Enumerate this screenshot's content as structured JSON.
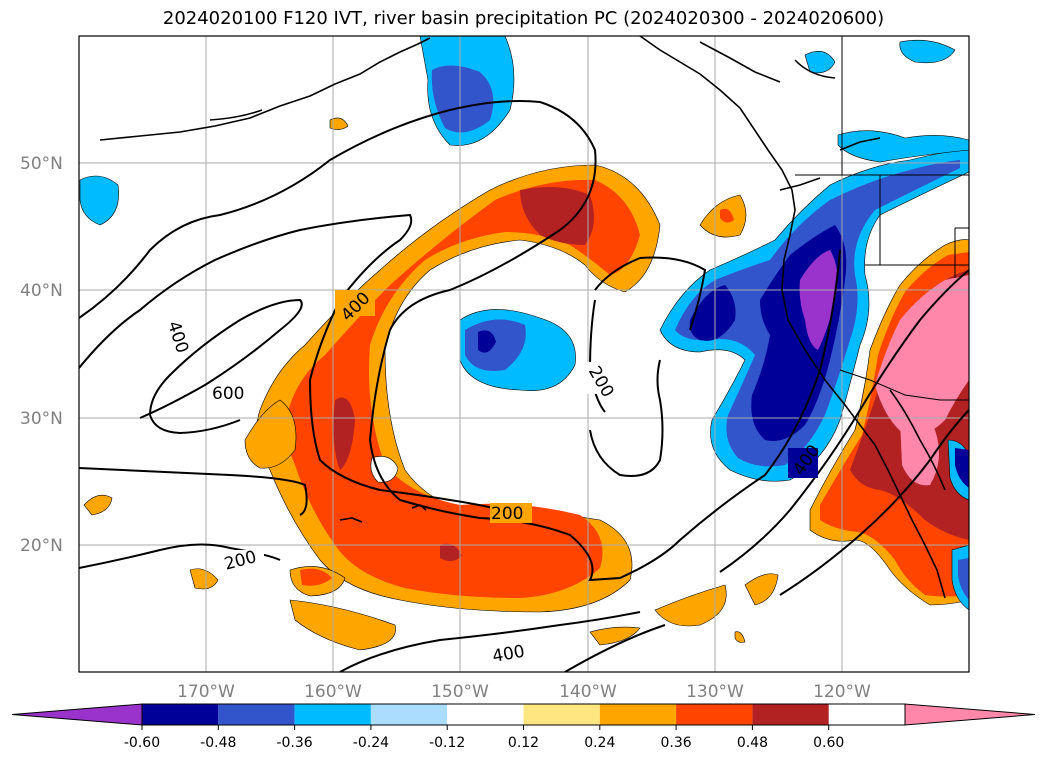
{
  "title": "2024020100 F120 IVT, river basin precipitation PC (2024020300 - 2024020600)",
  "map": {
    "lon_range": [
      -180,
      -110
    ],
    "lat_range": [
      10,
      60
    ],
    "lat_labels": [
      "50°N",
      "40°N",
      "30°N",
      "20°N"
    ],
    "lon_labels": [
      "170°W",
      "160°W",
      "150°W",
      "140°W",
      "130°W",
      "120°W"
    ],
    "contour_labels": [
      "400",
      "600",
      "400",
      "200",
      "200",
      "200",
      "400",
      "400"
    ],
    "grid": true
  },
  "colorbar": {
    "extend": "both",
    "ticks": [
      "-0.60",
      "-0.48",
      "-0.36",
      "-0.24",
      "-0.12",
      "0.12",
      "0.24",
      "0.36",
      "0.48",
      "0.60"
    ],
    "colors": [
      "#9933cc",
      "#000099",
      "#3355cc",
      "#00bbff",
      "#aaddff",
      "#ffffff",
      "#ffe680",
      "#ffa500",
      "#ff4400",
      "#b22222",
      "#ff88aa"
    ]
  }
}
